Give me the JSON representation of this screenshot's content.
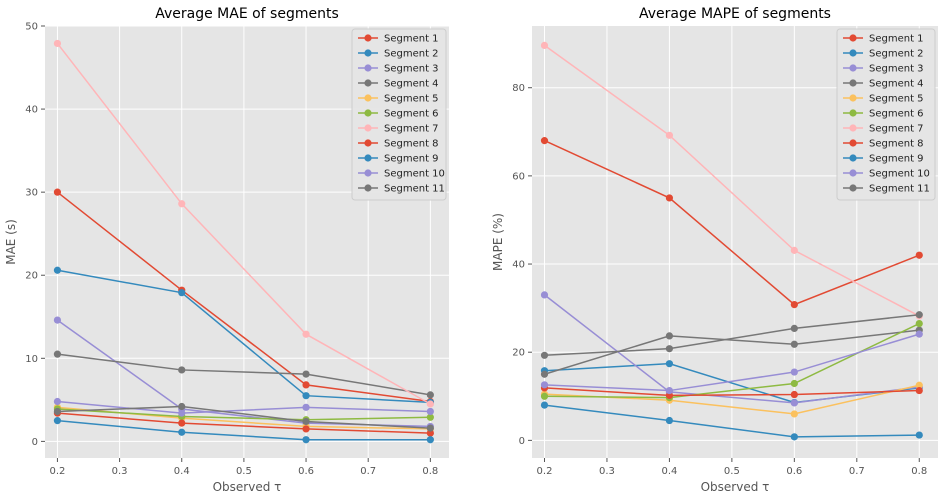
{
  "chart_data": [
    {
      "type": "line",
      "title": "Average MAE of segments",
      "xlabel": "Observed τ",
      "ylabel": "MAE (s)",
      "x": [
        0.2,
        0.4,
        0.6,
        0.8
      ],
      "xlim": [
        0.18,
        0.83
      ],
      "ylim": [
        -2.0,
        50
      ],
      "xticks": [
        "0.2",
        "0.3",
        "0.4",
        "0.5",
        "0.6",
        "0.7",
        "0.8"
      ],
      "yticks": [
        "0",
        "10",
        "20",
        "30",
        "40",
        "50"
      ],
      "grid": true,
      "legend_position": "top-right",
      "series": [
        {
          "name": "Segment 1",
          "color": "#E24A33",
          "values": [
            30.0,
            18.2,
            6.8,
            4.8
          ]
        },
        {
          "name": "Segment 2",
          "color": "#348ABD",
          "values": [
            20.6,
            17.9,
            5.5,
            4.7
          ]
        },
        {
          "name": "Segment 3",
          "color": "#988ED5",
          "values": [
            14.6,
            3.9,
            2.2,
            1.8
          ]
        },
        {
          "name": "Segment 4",
          "color": "#777777",
          "values": [
            10.5,
            8.6,
            8.1,
            5.6
          ]
        },
        {
          "name": "Segment 5",
          "color": "#FBC15E",
          "values": [
            4.1,
            2.8,
            1.8,
            1.5
          ]
        },
        {
          "name": "Segment 6",
          "color": "#8EBA42",
          "values": [
            3.9,
            3.0,
            2.6,
            2.9
          ]
        },
        {
          "name": "Segment 7",
          "color": "#FFB5B8",
          "values": [
            47.9,
            28.6,
            12.9,
            4.5
          ]
        },
        {
          "name": "Segment 8",
          "color": "#E24A33",
          "values": [
            3.4,
            2.2,
            1.5,
            1.0
          ]
        },
        {
          "name": "Segment 9",
          "color": "#348ABD",
          "values": [
            2.5,
            1.1,
            0.2,
            0.2
          ]
        },
        {
          "name": "Segment 10",
          "color": "#988ED5",
          "values": [
            4.8,
            3.4,
            4.1,
            3.6
          ]
        },
        {
          "name": "Segment 11",
          "color": "#777777",
          "values": [
            3.6,
            4.2,
            2.4,
            1.6
          ]
        }
      ]
    },
    {
      "type": "line",
      "title": "Average MAPE of segments",
      "xlabel": "Observed τ",
      "ylabel": "MAPE (%)",
      "x": [
        0.2,
        0.4,
        0.6,
        0.8
      ],
      "xlim": [
        0.18,
        0.83
      ],
      "ylim": [
        -4.0,
        94
      ],
      "xticks": [
        "0.2",
        "0.3",
        "0.4",
        "0.5",
        "0.6",
        "0.7",
        "0.8"
      ],
      "yticks": [
        "0",
        "20",
        "40",
        "60",
        "80"
      ],
      "grid": true,
      "legend_position": "top-right",
      "series": [
        {
          "name": "Segment 1",
          "color": "#E24A33",
          "values": [
            68.0,
            55.0,
            30.8,
            42.0
          ]
        },
        {
          "name": "Segment 2",
          "color": "#348ABD",
          "values": [
            15.8,
            17.4,
            8.6,
            11.9
          ]
        },
        {
          "name": "Segment 3",
          "color": "#988ED5",
          "values": [
            33.0,
            11.0,
            8.5,
            12.1
          ]
        },
        {
          "name": "Segment 4",
          "color": "#777777",
          "values": [
            15.0,
            23.7,
            21.8,
            25.0
          ]
        },
        {
          "name": "Segment 5",
          "color": "#FBC15E",
          "values": [
            10.5,
            9.1,
            6.0,
            12.5
          ]
        },
        {
          "name": "Segment 6",
          "color": "#8EBA42",
          "values": [
            10.0,
            9.7,
            12.9,
            26.5
          ]
        },
        {
          "name": "Segment 7",
          "color": "#FFB5B8",
          "values": [
            89.6,
            69.2,
            43.1,
            28.2
          ]
        },
        {
          "name": "Segment 8",
          "color": "#E24A33",
          "values": [
            11.9,
            10.2,
            10.4,
            11.3
          ]
        },
        {
          "name": "Segment 9",
          "color": "#348ABD",
          "values": [
            8.0,
            4.5,
            0.8,
            1.2
          ]
        },
        {
          "name": "Segment 10",
          "color": "#988ED5",
          "values": [
            12.6,
            11.3,
            15.5,
            24.1
          ]
        },
        {
          "name": "Segment 11",
          "color": "#777777",
          "values": [
            19.3,
            20.8,
            25.4,
            28.5
          ]
        }
      ]
    }
  ]
}
